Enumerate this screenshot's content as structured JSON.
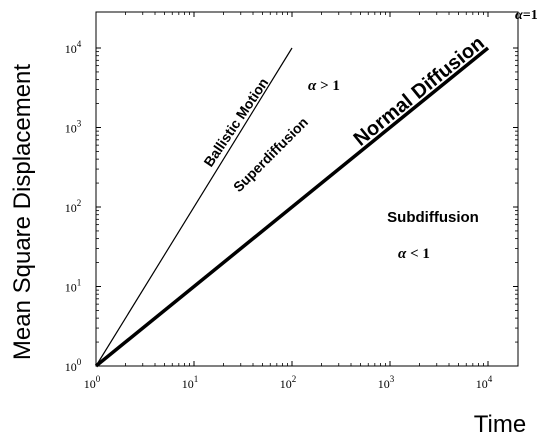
{
  "chart_data": {
    "type": "line",
    "xscale": "log",
    "yscale": "log",
    "xlim": [
      1,
      10000
    ],
    "ylim": [
      1,
      10000
    ],
    "xlabel": "Time",
    "ylabel": "Mean Square Displacement",
    "xticks": [
      {
        "value": 1,
        "base": "10",
        "exp": "0"
      },
      {
        "value": 10,
        "base": "10",
        "exp": "1"
      },
      {
        "value": 100,
        "base": "10",
        "exp": "2"
      },
      {
        "value": 1000,
        "base": "10",
        "exp": "3"
      },
      {
        "value": 10000,
        "base": "10",
        "exp": "4"
      }
    ],
    "yticks": [
      {
        "value": 1,
        "base": "10",
        "exp": "0"
      },
      {
        "value": 10,
        "base": "10",
        "exp": "1"
      },
      {
        "value": 100,
        "base": "10",
        "exp": "2"
      },
      {
        "value": 1000,
        "base": "10",
        "exp": "3"
      },
      {
        "value": 10000,
        "base": "10",
        "exp": "4"
      }
    ],
    "series": [
      {
        "name": "Ballistic Motion",
        "x": [
          1,
          100
        ],
        "y": [
          1,
          10000
        ],
        "line": "thin"
      },
      {
        "name": "Normal Diffusion",
        "x": [
          1,
          10000
        ],
        "y": [
          1,
          10000
        ],
        "line": "thick"
      }
    ],
    "annotations": {
      "ballistic": "Ballistic Motion",
      "superdiffusion": "Superdiffusion",
      "normal": "Normal Diffusion",
      "subdiffusion": "Subdiffusion",
      "alpha_gt": {
        "symbol": "α",
        "rest": " > 1"
      },
      "alpha_lt": {
        "symbol": "α",
        "rest": " < 1"
      },
      "alpha_eq": {
        "symbol": "α",
        "rest": "=1"
      }
    },
    "grid": false
  }
}
